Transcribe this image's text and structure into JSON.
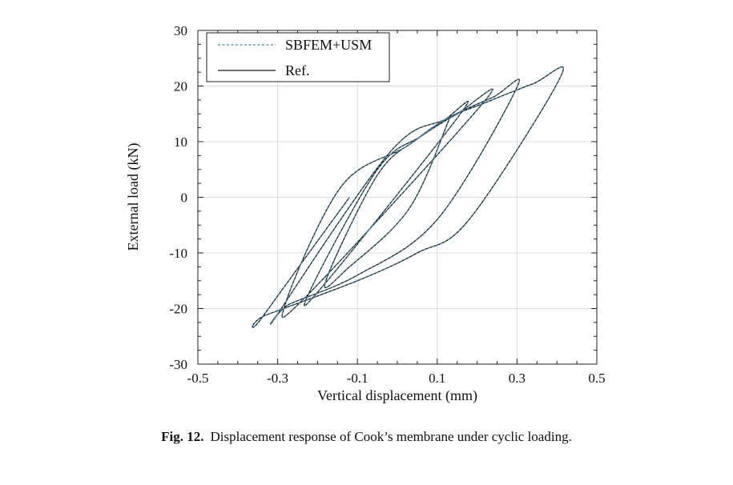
{
  "caption": {
    "label": "Fig. 12.",
    "text": "Displacement response of Cook’s membrane under cyclic loading."
  },
  "chart_data": {
    "type": "line",
    "xlabel": "Vertical displacement (mm)",
    "ylabel": "External load (kN)",
    "xlim": [
      -0.5,
      0.5
    ],
    "ylim": [
      -30,
      30
    ],
    "x_ticks": [
      -0.5,
      -0.3,
      -0.1,
      0.1,
      0.3,
      0.5
    ],
    "x_tick_labels": [
      "-0.5",
      "-0.3",
      "-0.1",
      "0.1",
      "0.3",
      "0.5"
    ],
    "y_ticks": [
      -30,
      -20,
      -10,
      0,
      10,
      20,
      30
    ],
    "y_tick_labels": [
      "-30",
      "-20",
      "-10",
      "0",
      "10",
      "20",
      "30"
    ],
    "grid": true,
    "legend": "top-left",
    "series": [
      {
        "name": "SBFEM+USM",
        "style": "dashed",
        "color": "#4a7fa0",
        "points": [
          [
            -0.12,
            0
          ],
          [
            -0.34,
            -21.7
          ],
          [
            -0.33,
            -21.2
          ],
          [
            -0.1,
            -15
          ],
          [
            0.05,
            -10
          ],
          [
            0.18,
            -4
          ],
          [
            0.41,
            21.8
          ],
          [
            0.34,
            20.4
          ],
          [
            0.22,
            17
          ],
          [
            0.12,
            14
          ],
          [
            -0.02,
            8
          ],
          [
            -0.3,
            -21
          ],
          [
            -0.27,
            -19.2
          ],
          [
            -0.1,
            -14
          ],
          [
            0.1,
            -4
          ],
          [
            0.3,
            19.8
          ],
          [
            0.24,
            18
          ],
          [
            0.12,
            14
          ],
          [
            0.02,
            9
          ],
          [
            -0.14,
            2
          ],
          [
            -0.28,
            -19
          ],
          [
            -0.22,
            -17.2
          ],
          [
            0.22,
            17.4
          ],
          [
            0.15,
            15
          ],
          [
            0.06,
            11
          ],
          [
            -0.05,
            5
          ],
          [
            -0.22,
            -17
          ],
          [
            -0.18,
            -15.4
          ],
          [
            0.16,
            15.2
          ],
          [
            0.12,
            14
          ],
          [
            0.05,
            10.5
          ],
          [
            -0.05,
            4
          ],
          [
            -0.18,
            -15.2
          ],
          [
            -0.12,
            -12.5
          ],
          [
            0.03,
            -2
          ],
          [
            0.13,
            14
          ]
        ]
      },
      {
        "name": "Ref.",
        "style": "solid",
        "color": "#1a1a1a",
        "points": [
          [
            -0.12,
            0
          ],
          [
            -0.34,
            -21.7
          ],
          [
            -0.33,
            -21.2
          ],
          [
            -0.1,
            -15
          ],
          [
            0.05,
            -10
          ],
          [
            0.18,
            -4
          ],
          [
            0.41,
            21.8
          ],
          [
            0.34,
            20.4
          ],
          [
            0.22,
            17
          ],
          [
            0.12,
            14
          ],
          [
            -0.02,
            8
          ],
          [
            -0.3,
            -21
          ],
          [
            -0.27,
            -19.2
          ],
          [
            -0.1,
            -14
          ],
          [
            0.1,
            -4
          ],
          [
            0.3,
            19.8
          ],
          [
            0.24,
            18
          ],
          [
            0.12,
            14
          ],
          [
            0.02,
            9
          ],
          [
            -0.14,
            2
          ],
          [
            -0.28,
            -19
          ],
          [
            -0.22,
            -17.2
          ],
          [
            0.22,
            17.4
          ],
          [
            0.15,
            15
          ],
          [
            0.06,
            11
          ],
          [
            -0.05,
            5
          ],
          [
            -0.22,
            -17
          ],
          [
            -0.18,
            -15.4
          ],
          [
            0.16,
            15.2
          ],
          [
            0.12,
            14
          ],
          [
            0.05,
            10.5
          ],
          [
            -0.05,
            4
          ],
          [
            -0.18,
            -15.2
          ],
          [
            -0.12,
            -12.5
          ],
          [
            0.03,
            -2
          ],
          [
            0.13,
            14
          ]
        ]
      }
    ]
  }
}
